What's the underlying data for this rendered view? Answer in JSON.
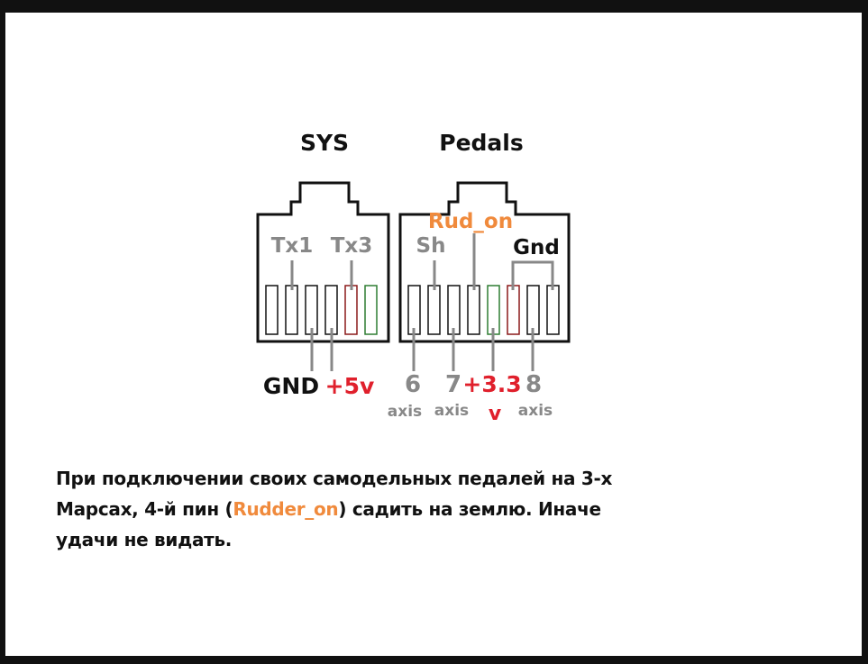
{
  "colors": {
    "black": "#111111",
    "gray": "#888888",
    "red": "#e0202c",
    "orange": "#f08a3c",
    "darkred": "#8b1a1a",
    "green": "#2e7d32"
  },
  "connectors": {
    "sys": {
      "title": "SYS",
      "top_labels": [
        "Tx1",
        "Tx3"
      ],
      "bottom_labels": [
        "GND",
        "+5v"
      ]
    },
    "pedals": {
      "title": "Pedals",
      "top_labels": [
        "Rud_on",
        "Sh",
        "Gnd"
      ],
      "bottom_numbers": [
        "6",
        "7",
        "+3.3",
        "8"
      ],
      "bottom_subs": [
        "axis",
        "axis",
        "v",
        "axis"
      ]
    }
  },
  "note": {
    "line1": "При подключении своих самодельных педалей на 3-х",
    "line2_before": "Марсах, 4-й пин (",
    "line2_highlight": "Rudder_on",
    "line2_after": ") садить на землю. Иначе",
    "line3": "удачи не видать."
  }
}
